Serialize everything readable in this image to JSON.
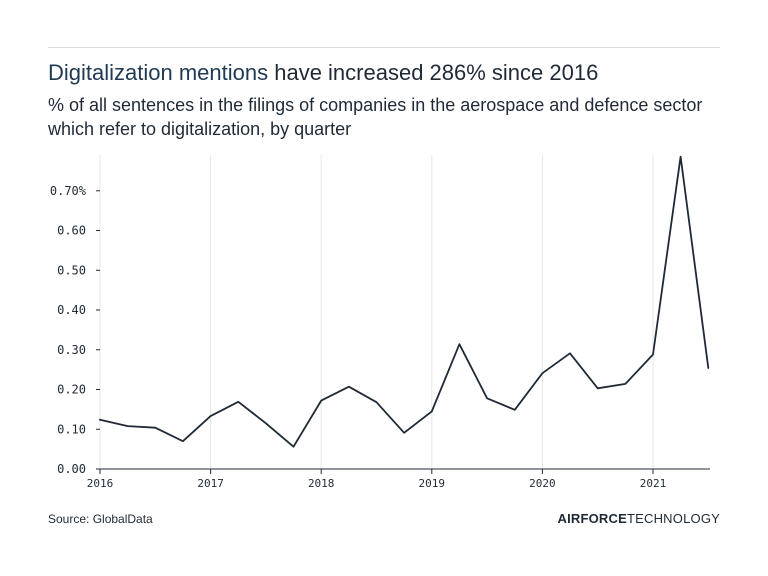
{
  "header": {
    "title_highlight": "Digitalization mentions",
    "title_rest": " have increased 286% since 2016",
    "subtitle": "% of all sentences in the filings of companies in the aerospace and defence sector which refer to digitalization, by quarter"
  },
  "footer": {
    "source": "Source: GlobalData",
    "brand_bold": "AIRFORCE",
    "brand_light": "TECHNOLOGY"
  },
  "colors": {
    "line": "#1f2a36",
    "grid": "#e3e6e9",
    "axis": "#1f2a36"
  },
  "chart_data": {
    "type": "line",
    "title": "Digitalization mentions have increased 286% since 2016",
    "subtitle": "% of all sentences in the filings of companies in the aerospace and defence sector which refer to digitalization, by quarter",
    "xlabel": "",
    "ylabel": "",
    "x": [
      "2016 Q1",
      "2016 Q2",
      "2016 Q3",
      "2016 Q4",
      "2017 Q1",
      "2017 Q2",
      "2017 Q3",
      "2017 Q4",
      "2018 Q1",
      "2018 Q2",
      "2018 Q3",
      "2018 Q4",
      "2019 Q1",
      "2019 Q2",
      "2019 Q3",
      "2019 Q4",
      "2020 Q1",
      "2020 Q2",
      "2020 Q3",
      "2020 Q4",
      "2021 Q1",
      "2021 Q2",
      "2021 Q3"
    ],
    "series": [
      {
        "values": [
          0.124,
          0.108,
          0.104,
          0.07,
          0.133,
          0.169,
          0.115,
          0.056,
          0.172,
          0.207,
          0.168,
          0.091,
          0.145,
          0.314,
          0.178,
          0.149,
          0.241,
          0.291,
          0.203,
          0.214,
          0.288,
          0.786,
          0.254
        ]
      }
    ],
    "x_tick_labels": [
      "2016",
      "2017",
      "2018",
      "2019",
      "2020",
      "2021"
    ],
    "y_tick_labels": [
      "0.00",
      "0.10",
      "0.20",
      "0.30",
      "0.40",
      "0.50",
      "0.60",
      "0.70%"
    ],
    "y_ticks": [
      0,
      0.1,
      0.2,
      0.3,
      0.4,
      0.5,
      0.6,
      0.7
    ],
    "ylim": [
      0,
      0.79
    ],
    "grid": true,
    "grid_axis": "x"
  }
}
